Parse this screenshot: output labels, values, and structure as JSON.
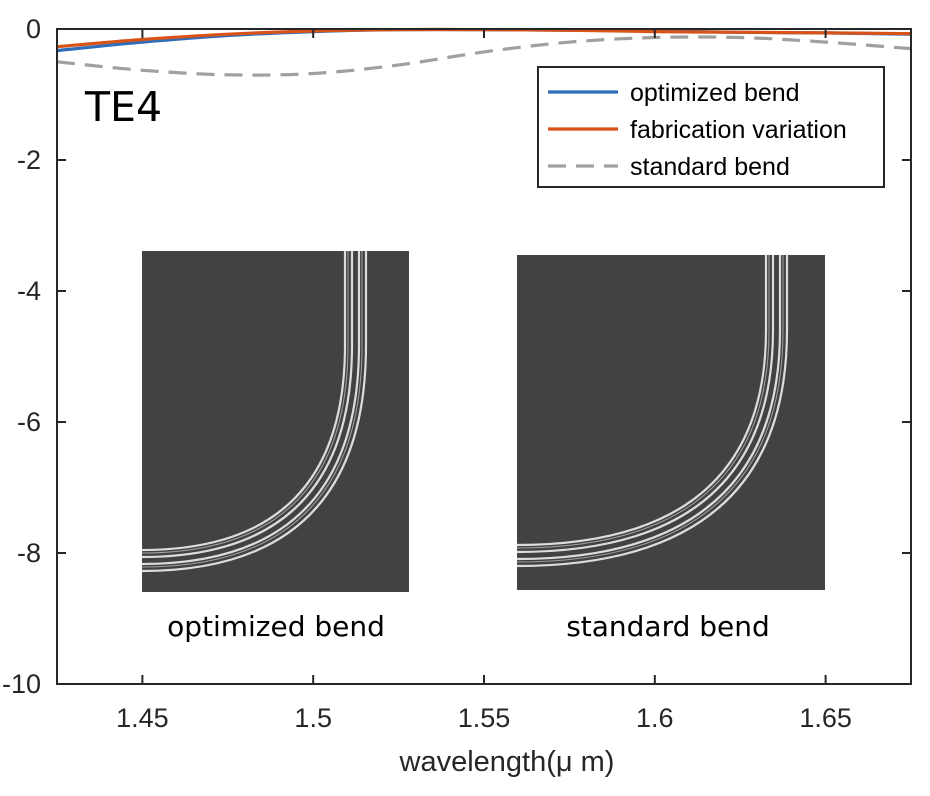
{
  "chart_data": {
    "type": "line",
    "xlabel": "wavelength(μ m)",
    "ylabel": "",
    "xlim": [
      1.425,
      1.675
    ],
    "ylim": [
      -10,
      0
    ],
    "xticks": [
      1.45,
      1.5,
      1.55,
      1.6,
      1.65
    ],
    "xtick_labels": [
      "1.45",
      "1.5",
      "1.55",
      "1.6",
      "1.65"
    ],
    "yticks": [
      0,
      -2,
      -4,
      -6,
      -8,
      -10
    ],
    "ytick_labels": [
      "0",
      "-2",
      "-4",
      "-6",
      "-8",
      "-10"
    ],
    "grid": false,
    "legend_position": "top-right",
    "annotation": "TE4",
    "series": [
      {
        "name": "optimized bend",
        "color": "#2F6EBA",
        "style": "solid",
        "x": [
          1.425,
          1.45,
          1.475,
          1.5,
          1.525,
          1.55,
          1.575,
          1.6,
          1.625,
          1.65,
          1.675
        ],
        "y": [
          -0.33,
          -0.2,
          -0.1,
          -0.04,
          -0.01,
          -0.01,
          -0.02,
          -0.03,
          -0.05,
          -0.06,
          -0.08
        ]
      },
      {
        "name": "fabrication variation",
        "color": "#D95319",
        "style": "solid",
        "x": [
          1.425,
          1.45,
          1.475,
          1.5,
          1.525,
          1.55,
          1.575,
          1.6,
          1.625,
          1.65,
          1.675
        ],
        "y": [
          -0.27,
          -0.16,
          -0.08,
          -0.03,
          -0.01,
          -0.01,
          -0.02,
          -0.04,
          -0.05,
          -0.06,
          -0.07
        ]
      },
      {
        "name": "standard bend",
        "color": "#A0A0A0",
        "style": "dashed",
        "x": [
          1.425,
          1.45,
          1.475,
          1.5,
          1.525,
          1.55,
          1.575,
          1.6,
          1.625,
          1.65,
          1.675
        ],
        "y": [
          -0.5,
          -0.63,
          -0.7,
          -0.68,
          -0.55,
          -0.35,
          -0.2,
          -0.13,
          -0.13,
          -0.2,
          -0.3
        ]
      }
    ],
    "insets": [
      {
        "caption": "optimized bend"
      },
      {
        "caption": "standard bend"
      }
    ]
  }
}
